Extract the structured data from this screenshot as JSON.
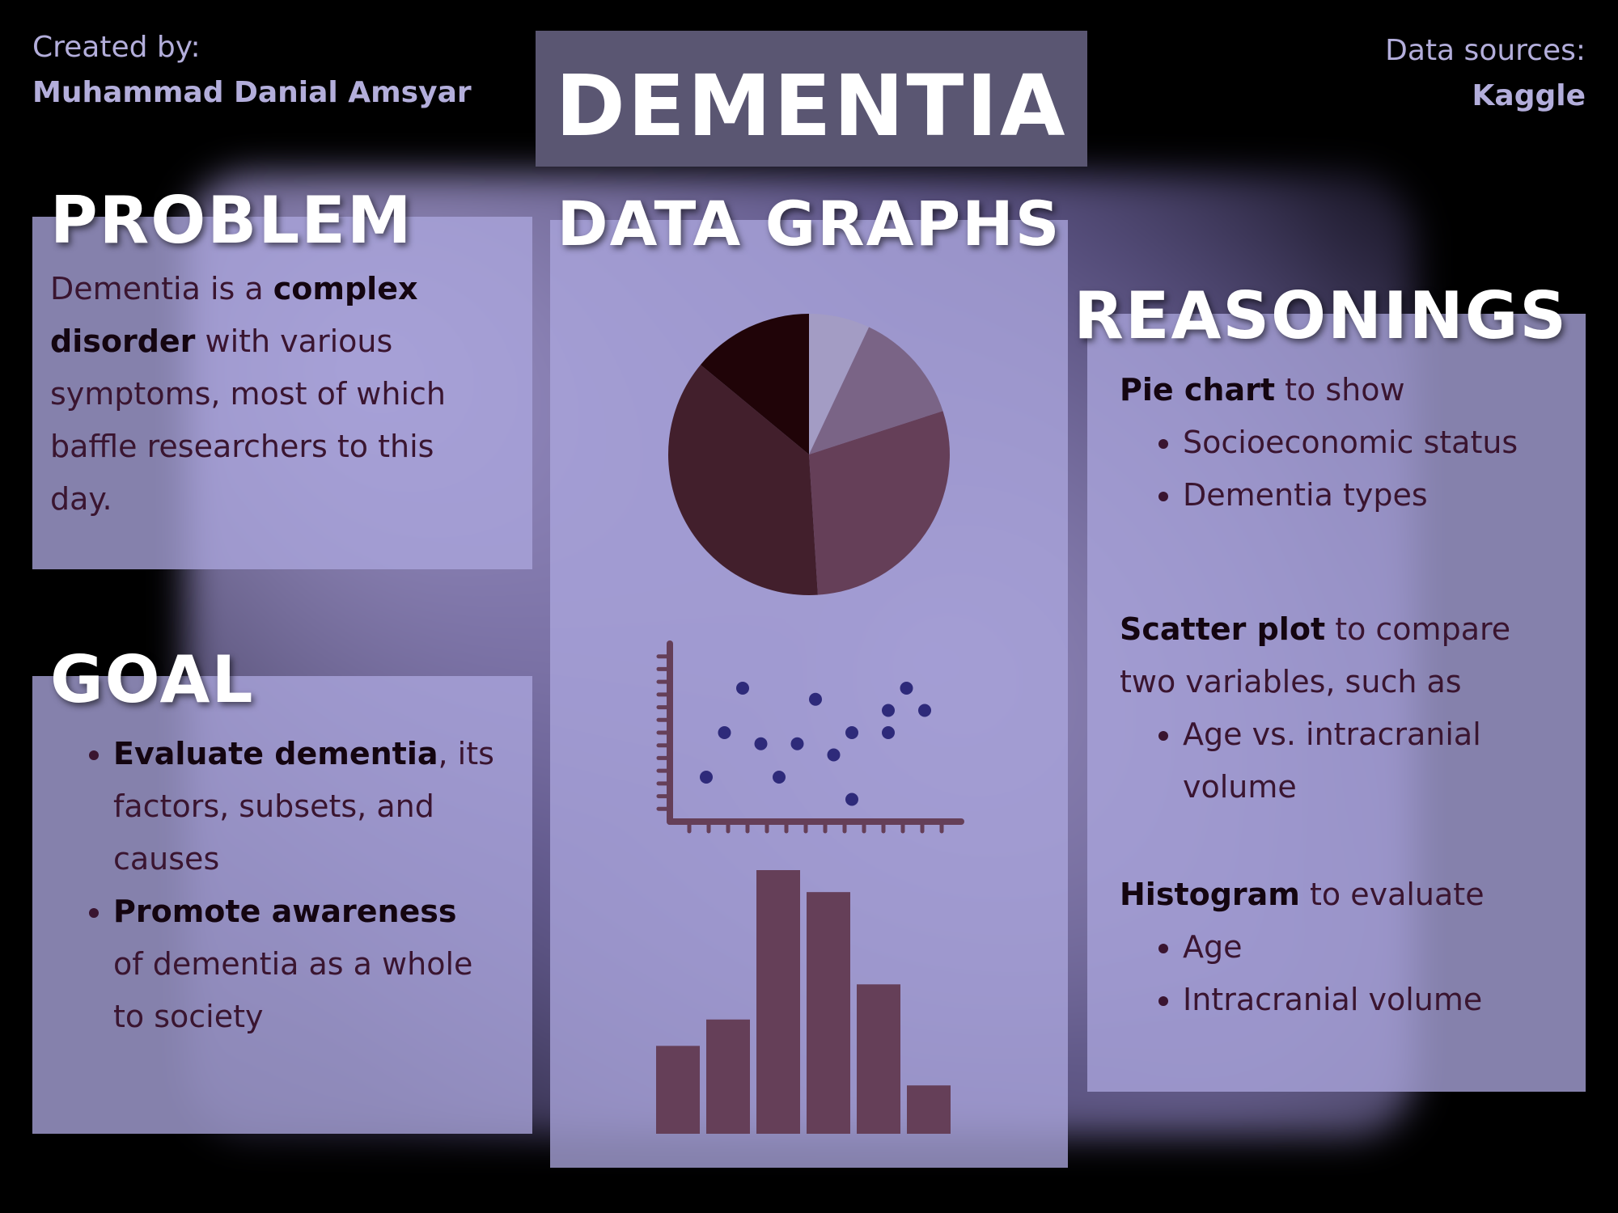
{
  "header": {
    "created_by_label": "Created by:",
    "author": "Muhammad Danial Amsyar",
    "title": "DEMENTIA",
    "sources_label": "Data sources:",
    "source": "Kaggle"
  },
  "problem": {
    "heading": "PROBLEM",
    "lines": [
      [
        "Dementia is a ",
        "complex"
      ],
      [
        "disorder",
        " with various"
      ],
      [
        "symptoms, most of which"
      ],
      [
        "baffle researchers to this"
      ],
      [
        "day."
      ]
    ]
  },
  "goal": {
    "heading": "GOAL",
    "items": [
      {
        "bold": "Evaluate dementia",
        "rest_lines": [
          ", its",
          "factors, subsets, and",
          "causes"
        ]
      },
      {
        "bold": "Promote awareness",
        "rest_lines": [
          "",
          "of dementia as a whole",
          "to society"
        ]
      }
    ]
  },
  "graphs": {
    "heading": "DATA GRAPHS"
  },
  "reasonings": {
    "heading": "REASONINGS",
    "pie": {
      "bold": "Pie chart",
      "rest": " to show",
      "items": [
        "Socioeconomic status",
        "Dementia types"
      ]
    },
    "scatter": {
      "bold": "Scatter plot",
      "rest": " to compare",
      "line2": "two variables, such as",
      "items": [
        "Age vs. intracranial",
        "volume"
      ]
    },
    "histogram": {
      "bold": "Histogram",
      "rest": " to evaluate",
      "items": [
        "Age",
        "Intracranial volume"
      ]
    }
  },
  "chart_data": [
    {
      "type": "pie",
      "values": [
        7,
        13,
        29,
        37,
        14
      ],
      "colors": [
        "#a39cc4",
        "#7a6486",
        "#653f58",
        "#421f2c",
        "#200408"
      ]
    },
    {
      "type": "scatter",
      "points": [
        [
          2,
          2
        ],
        [
          3,
          4
        ],
        [
          4,
          6
        ],
        [
          5,
          3.5
        ],
        [
          6,
          2
        ],
        [
          7,
          3.5
        ],
        [
          8,
          5.5
        ],
        [
          9,
          3
        ],
        [
          10,
          1
        ],
        [
          10,
          4
        ],
        [
          12,
          5
        ],
        [
          12,
          4
        ],
        [
          13,
          6
        ],
        [
          14,
          5
        ]
      ],
      "color": "#2e2a7a",
      "xlim": [
        0,
        16
      ],
      "ylim": [
        0,
        8
      ]
    },
    {
      "type": "histogram",
      "values": [
        2,
        2.6,
        6,
        5.5,
        3.4,
        1.1
      ],
      "color": "#653f58"
    }
  ]
}
